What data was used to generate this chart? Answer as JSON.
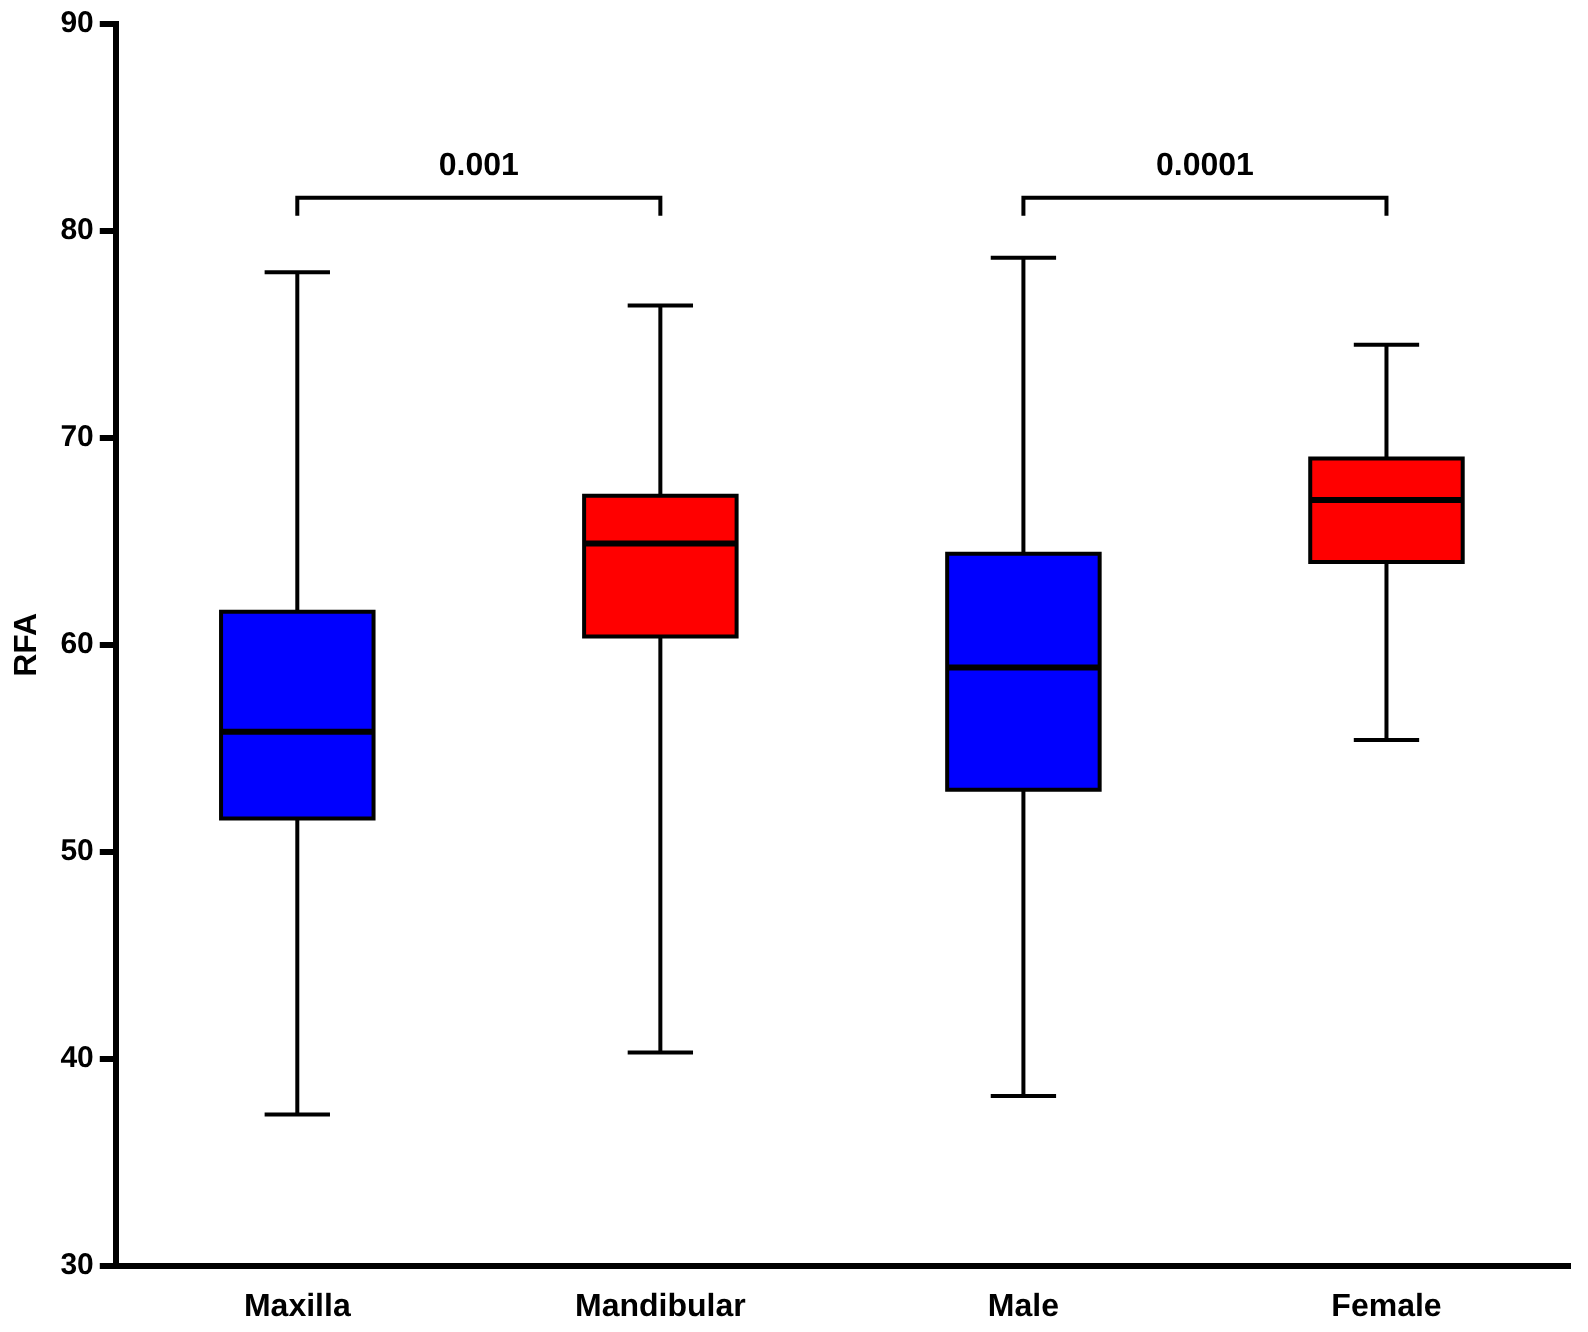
{
  "chart_data": {
    "type": "box",
    "ylabel": "RFA",
    "categories": [
      "Maxilla",
      "Mandibular",
      "Male",
      "Female"
    ],
    "colors": [
      "#0000ff",
      "#ff0000",
      "#0000ff",
      "#ff0000"
    ],
    "boxes": [
      {
        "low": 37.3,
        "q1": 51.6,
        "median": 55.8,
        "q3": 61.6,
        "high": 78
      },
      {
        "low": 40.3,
        "q1": 60.4,
        "median": 64.9,
        "q3": 67.2,
        "high": 76.4
      },
      {
        "low": 38.2,
        "q1": 53,
        "median": 58.9,
        "q3": 64.4,
        "high": 78.7
      },
      {
        "low": 55.4,
        "q1": 64,
        "median": 67,
        "q3": 69,
        "high": 74.5
      }
    ],
    "ylim": [
      30,
      90
    ],
    "yticks": [
      30,
      40,
      50,
      60,
      70,
      80,
      90
    ],
    "grid": false,
    "legend": false,
    "annotations": [
      "0.001",
      "0.0001"
    ]
  }
}
